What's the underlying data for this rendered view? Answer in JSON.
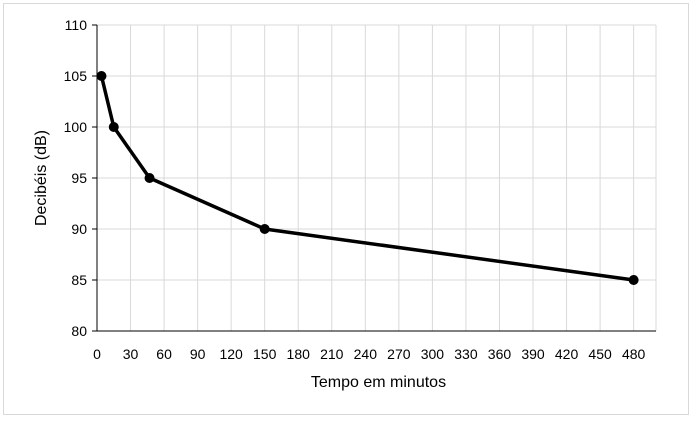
{
  "chart_data": {
    "type": "line",
    "title": "",
    "xlabel": "Tempo em minutos",
    "ylabel": "Decibéis (dB)",
    "xlim": [
      0,
      500
    ],
    "ylim": [
      80,
      110
    ],
    "x_ticks": [
      0,
      30,
      60,
      90,
      120,
      150,
      180,
      210,
      240,
      270,
      300,
      330,
      360,
      390,
      420,
      450,
      480
    ],
    "y_ticks": [
      80,
      85,
      90,
      95,
      100,
      105,
      110
    ],
    "grid": true,
    "legend": "none",
    "series": [
      {
        "x": [
          4,
          15,
          47,
          150,
          480
        ],
        "y": [
          105,
          100,
          95,
          90,
          85
        ],
        "color": "#000000",
        "marker": "circle"
      }
    ]
  }
}
